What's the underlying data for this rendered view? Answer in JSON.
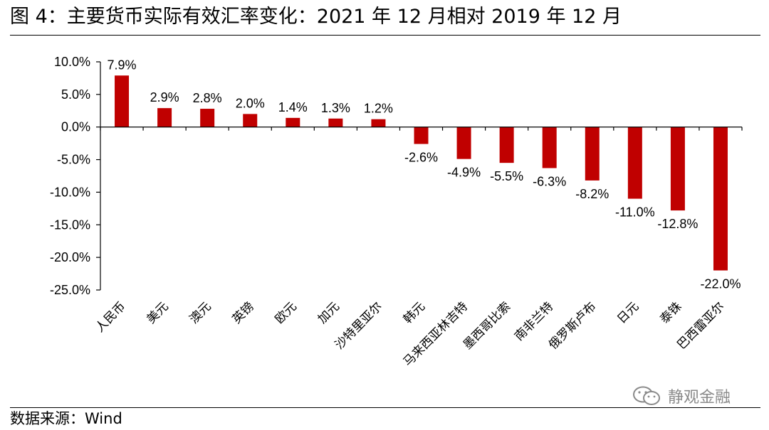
{
  "header": {
    "title": "图 4：主要货币实际有效汇率变化：2021 年 12 月相对 2019 年 12 月"
  },
  "footer": {
    "source": "数据来源：Wind",
    "watermark": "静观金融",
    "watermark_icon": "wechat-icon"
  },
  "colors": {
    "bar": "#c00000",
    "axis": "#000000",
    "watermark": "#8a8a8a"
  },
  "chart_data": {
    "type": "bar",
    "title": "",
    "xlabel": "",
    "ylabel": "",
    "categories": [
      "人民币",
      "美元",
      "澳元",
      "英镑",
      "欧元",
      "加元",
      "沙特里亚尔",
      "韩元",
      "马来西亚林吉特",
      "墨西哥比索",
      "南非兰特",
      "俄罗斯卢布",
      "日元",
      "泰铢",
      "巴西雷亚尔"
    ],
    "values": [
      7.9,
      2.9,
      2.8,
      2.0,
      1.4,
      1.3,
      1.2,
      -2.6,
      -4.9,
      -5.5,
      -6.3,
      -8.2,
      -11.0,
      -12.8,
      -22.0
    ],
    "value_labels": [
      "7.9%",
      "2.9%",
      "2.8%",
      "2.0%",
      "1.4%",
      "1.3%",
      "1.2%",
      "-2.6%",
      "-4.9%",
      "-5.5%",
      "-6.3%",
      "-8.2%",
      "-11.0%",
      "-12.8%",
      "-22.0%"
    ],
    "unit": "%",
    "ylim": [
      -25,
      10
    ],
    "yticks": [
      10,
      5,
      0,
      -5,
      -10,
      -15,
      -20,
      -25
    ],
    "ytick_labels": [
      "10.0%",
      "5.0%",
      "0.0%",
      "-5.0%",
      "-10.0%",
      "-15.0%",
      "-20.0%",
      "-25.0%"
    ],
    "category_label_rotation": "45deg",
    "grid": false,
    "legend": "none"
  }
}
